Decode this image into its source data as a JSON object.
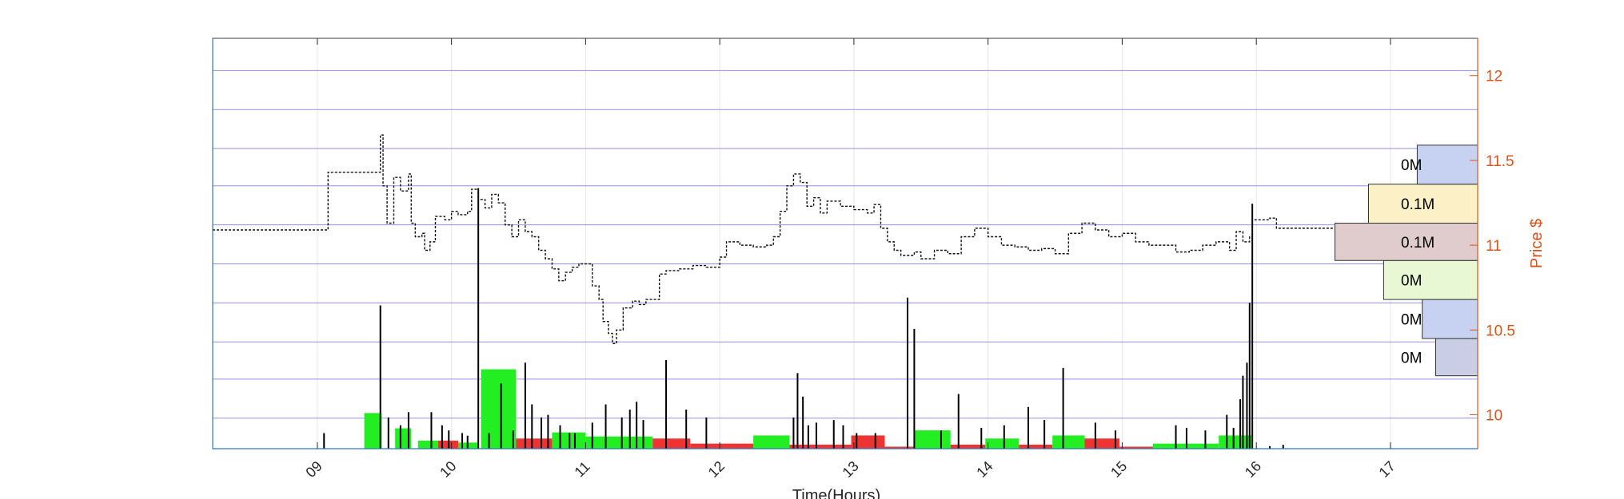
{
  "chart_data": {
    "type": "bar",
    "xlabel": "Time(Hours)",
    "ylabel": "Price $",
    "title": "",
    "x_ticks": [
      "09",
      "10",
      "11",
      "12",
      "13",
      "14",
      "15",
      "16",
      "17"
    ],
    "xlim": [
      8.22,
      17.65
    ],
    "ylim": [
      9.8,
      12.22
    ],
    "y_ticks": [
      10,
      10.5,
      11,
      11.5,
      12
    ],
    "y_tick_labels": [
      "10",
      "10.5",
      "11",
      "11.5",
      "12"
    ],
    "price_levels": [
      9.98,
      10.21,
      10.43,
      10.66,
      10.89,
      11.12,
      11.35,
      11.57,
      11.8,
      12.03
    ],
    "grid": true,
    "price_path": [
      [
        8.22,
        11.09
      ],
      [
        9.05,
        11.09
      ],
      [
        9.08,
        11.43
      ],
      [
        9.45,
        11.43
      ],
      [
        9.47,
        11.65
      ],
      [
        9.49,
        11.35
      ],
      [
        9.52,
        11.13
      ],
      [
        9.57,
        11.4
      ],
      [
        9.62,
        11.32
      ],
      [
        9.68,
        11.42
      ],
      [
        9.7,
        11.13
      ],
      [
        9.73,
        11.05
      ],
      [
        9.78,
        11.07
      ],
      [
        9.8,
        10.97
      ],
      [
        9.84,
        11.02
      ],
      [
        9.88,
        11.17
      ],
      [
        9.95,
        11.15
      ],
      [
        10.0,
        11.2
      ],
      [
        10.05,
        11.18
      ],
      [
        10.12,
        11.2
      ],
      [
        10.15,
        11.33
      ],
      [
        10.2,
        11.27
      ],
      [
        10.25,
        11.22
      ],
      [
        10.3,
        11.3
      ],
      [
        10.35,
        11.25
      ],
      [
        10.4,
        11.12
      ],
      [
        10.45,
        11.05
      ],
      [
        10.5,
        11.15
      ],
      [
        10.55,
        11.08
      ],
      [
        10.6,
        11.05
      ],
      [
        10.65,
        10.97
      ],
      [
        10.7,
        10.92
      ],
      [
        10.75,
        10.86
      ],
      [
        10.8,
        10.79
      ],
      [
        10.85,
        10.84
      ],
      [
        10.9,
        10.87
      ],
      [
        10.95,
        10.89
      ],
      [
        11.05,
        10.76
      ],
      [
        11.1,
        10.68
      ],
      [
        11.13,
        10.55
      ],
      [
        11.17,
        10.48
      ],
      [
        11.2,
        10.42
      ],
      [
        11.23,
        10.5
      ],
      [
        11.28,
        10.63
      ],
      [
        11.35,
        10.67
      ],
      [
        11.4,
        10.65
      ],
      [
        11.45,
        10.68
      ],
      [
        11.52,
        10.68
      ],
      [
        11.55,
        10.83
      ],
      [
        11.6,
        10.85
      ],
      [
        11.7,
        10.86
      ],
      [
        11.8,
        10.88
      ],
      [
        11.9,
        10.87
      ],
      [
        12.0,
        10.93
      ],
      [
        12.05,
        11.02
      ],
      [
        12.15,
        11.0
      ],
      [
        12.25,
        10.99
      ],
      [
        12.35,
        11.0
      ],
      [
        12.4,
        11.05
      ],
      [
        12.45,
        11.2
      ],
      [
        12.5,
        11.35
      ],
      [
        12.55,
        11.42
      ],
      [
        12.6,
        11.37
      ],
      [
        12.65,
        11.23
      ],
      [
        12.7,
        11.28
      ],
      [
        12.75,
        11.19
      ],
      [
        12.8,
        11.26
      ],
      [
        12.9,
        11.23
      ],
      [
        13.0,
        11.21
      ],
      [
        13.1,
        11.19
      ],
      [
        13.15,
        11.24
      ],
      [
        13.2,
        11.1
      ],
      [
        13.25,
        11.02
      ],
      [
        13.3,
        10.97
      ],
      [
        13.35,
        10.94
      ],
      [
        13.45,
        10.96
      ],
      [
        13.5,
        10.92
      ],
      [
        13.6,
        10.97
      ],
      [
        13.7,
        10.95
      ],
      [
        13.8,
        11.05
      ],
      [
        13.9,
        11.1
      ],
      [
        14.0,
        11.05
      ],
      [
        14.1,
        11.0
      ],
      [
        14.2,
        10.99
      ],
      [
        14.3,
        10.97
      ],
      [
        14.4,
        10.98
      ],
      [
        14.5,
        10.95
      ],
      [
        14.6,
        11.07
      ],
      [
        14.7,
        11.13
      ],
      [
        14.8,
        11.09
      ],
      [
        14.9,
        11.05
      ],
      [
        15.0,
        11.07
      ],
      [
        15.1,
        11.02
      ],
      [
        15.2,
        11.0
      ],
      [
        15.3,
        11.0
      ],
      [
        15.4,
        10.96
      ],
      [
        15.5,
        10.97
      ],
      [
        15.6,
        11.0
      ],
      [
        15.7,
        11.02
      ],
      [
        15.8,
        10.97
      ],
      [
        15.85,
        11.08
      ],
      [
        15.9,
        11.02
      ],
      [
        15.95,
        11.05
      ],
      [
        15.97,
        11.15
      ],
      [
        16.05,
        11.15
      ],
      [
        16.1,
        11.16
      ],
      [
        16.15,
        11.1
      ],
      [
        17.65,
        11.1
      ]
    ],
    "volume_bars": [
      {
        "x0": 9.35,
        "x1": 9.48,
        "buy": 0.175,
        "sell": 0.0
      },
      {
        "x0": 9.58,
        "x1": 9.7,
        "buy": 0.1,
        "sell": 0.0
      },
      {
        "x0": 9.75,
        "x1": 9.9,
        "buy": 0.04,
        "sell": 0.0
      },
      {
        "x0": 9.9,
        "x1": 10.05,
        "buy": 0.0,
        "sell": 0.04
      },
      {
        "x0": 10.05,
        "x1": 10.2,
        "buy": 0.03,
        "sell": 0.0
      },
      {
        "x0": 10.22,
        "x1": 10.48,
        "buy": 0.39,
        "sell": 0.0
      },
      {
        "x0": 10.48,
        "x1": 10.75,
        "buy": 0.0,
        "sell": 0.05
      },
      {
        "x0": 10.75,
        "x1": 11.0,
        "buy": 0.08,
        "sell": 0.0
      },
      {
        "x0": 11.0,
        "x1": 11.5,
        "buy": 0.06,
        "sell": 0.0
      },
      {
        "x0": 11.5,
        "x1": 11.78,
        "buy": 0.0,
        "sell": 0.05
      },
      {
        "x0": 11.78,
        "x1": 12.25,
        "buy": 0.0,
        "sell": 0.025
      },
      {
        "x0": 12.25,
        "x1": 12.52,
        "buy": 0.065,
        "sell": 0.0
      },
      {
        "x0": 12.52,
        "x1": 12.98,
        "buy": 0.0,
        "sell": 0.02
      },
      {
        "x0": 12.98,
        "x1": 13.23,
        "buy": 0.0,
        "sell": 0.065
      },
      {
        "x0": 13.23,
        "x1": 13.45,
        "buy": 0.0,
        "sell": 0.01
      },
      {
        "x0": 13.45,
        "x1": 13.72,
        "buy": 0.09,
        "sell": 0.0
      },
      {
        "x0": 13.72,
        "x1": 13.98,
        "buy": 0.0,
        "sell": 0.02
      },
      {
        "x0": 13.98,
        "x1": 14.23,
        "buy": 0.05,
        "sell": 0.0
      },
      {
        "x0": 14.23,
        "x1": 14.48,
        "buy": 0.0,
        "sell": 0.02
      },
      {
        "x0": 14.48,
        "x1": 14.72,
        "buy": 0.065,
        "sell": 0.0
      },
      {
        "x0": 14.72,
        "x1": 14.98,
        "buy": 0.0,
        "sell": 0.05
      },
      {
        "x0": 14.98,
        "x1": 15.23,
        "buy": 0.0,
        "sell": 0.01
      },
      {
        "x0": 15.23,
        "x1": 15.72,
        "buy": 0.025,
        "sell": 0.0
      },
      {
        "x0": 15.72,
        "x1": 15.97,
        "buy": 0.065,
        "sell": 0.0
      }
    ],
    "volume_spikes": [
      [
        9.05,
        0.06
      ],
      [
        9.47,
        0.55
      ],
      [
        9.53,
        0.12
      ],
      [
        9.62,
        0.09
      ],
      [
        9.68,
        0.14
      ],
      [
        9.85,
        0.14
      ],
      [
        9.93,
        0.09
      ],
      [
        9.98,
        0.07
      ],
      [
        10.08,
        0.06
      ],
      [
        10.12,
        0.05
      ],
      [
        10.2,
        1.0
      ],
      [
        10.28,
        0.06
      ],
      [
        10.37,
        0.25
      ],
      [
        10.46,
        0.07
      ],
      [
        10.55,
        0.33
      ],
      [
        10.6,
        0.17
      ],
      [
        10.67,
        0.12
      ],
      [
        10.72,
        0.13
      ],
      [
        10.81,
        0.09
      ],
      [
        10.88,
        0.06
      ],
      [
        10.92,
        0.06
      ],
      [
        11.05,
        0.1
      ],
      [
        11.15,
        0.17
      ],
      [
        11.27,
        0.12
      ],
      [
        11.33,
        0.15
      ],
      [
        11.38,
        0.18
      ],
      [
        11.43,
        0.11
      ],
      [
        11.6,
        0.34
      ],
      [
        11.75,
        0.15
      ],
      [
        11.9,
        0.12
      ],
      [
        12.55,
        0.12
      ],
      [
        12.58,
        0.29
      ],
      [
        12.62,
        0.2
      ],
      [
        12.66,
        0.09
      ],
      [
        12.72,
        0.1
      ],
      [
        12.85,
        0.11
      ],
      [
        12.92,
        0.09
      ],
      [
        13.02,
        0.06
      ],
      [
        13.16,
        0.06
      ],
      [
        13.4,
        0.58
      ],
      [
        13.45,
        0.46
      ],
      [
        13.65,
        0.07
      ],
      [
        13.78,
        0.21
      ],
      [
        13.95,
        0.08
      ],
      [
        14.12,
        0.09
      ],
      [
        14.3,
        0.16
      ],
      [
        14.42,
        0.11
      ],
      [
        14.56,
        0.31
      ],
      [
        14.8,
        0.1
      ],
      [
        14.95,
        0.07
      ],
      [
        15.4,
        0.09
      ],
      [
        15.48,
        0.08
      ],
      [
        15.62,
        0.07
      ],
      [
        15.78,
        0.13
      ],
      [
        15.83,
        0.08
      ],
      [
        15.88,
        0.19
      ],
      [
        15.9,
        0.28
      ],
      [
        15.93,
        0.33
      ],
      [
        15.95,
        0.56
      ],
      [
        15.97,
        0.94
      ],
      [
        16.1,
        0.01
      ],
      [
        16.2,
        0.015
      ]
    ],
    "volume_profile": [
      {
        "low": 10.23,
        "high": 10.45,
        "volume": 0.25,
        "label": "0M",
        "color": "#c9cde6"
      },
      {
        "low": 10.45,
        "high": 10.68,
        "volume": 0.33,
        "label": "0M",
        "color": "#c7d2f2"
      },
      {
        "low": 10.68,
        "high": 10.91,
        "volume": 0.56,
        "label": "0M",
        "color": "#e8f8d4"
      },
      {
        "low": 10.91,
        "high": 11.13,
        "volume": 0.85,
        "label": "0.1M",
        "color": "#e0cccc"
      },
      {
        "low": 11.13,
        "high": 11.36,
        "volume": 0.65,
        "label": "0.1M",
        "color": "#fbf0c6"
      },
      {
        "low": 11.36,
        "high": 11.59,
        "volume": 0.36,
        "label": "0M",
        "color": "#c7d2f2"
      }
    ]
  },
  "colors": {
    "frame": "#2b7bbf",
    "grid": "#e6e6e6",
    "price_levels": "#8f8fe8",
    "right_axis": "#d95319",
    "buy_volume": "#22ee22",
    "sell_volume": "#ee3333",
    "price_line": "#111111"
  }
}
